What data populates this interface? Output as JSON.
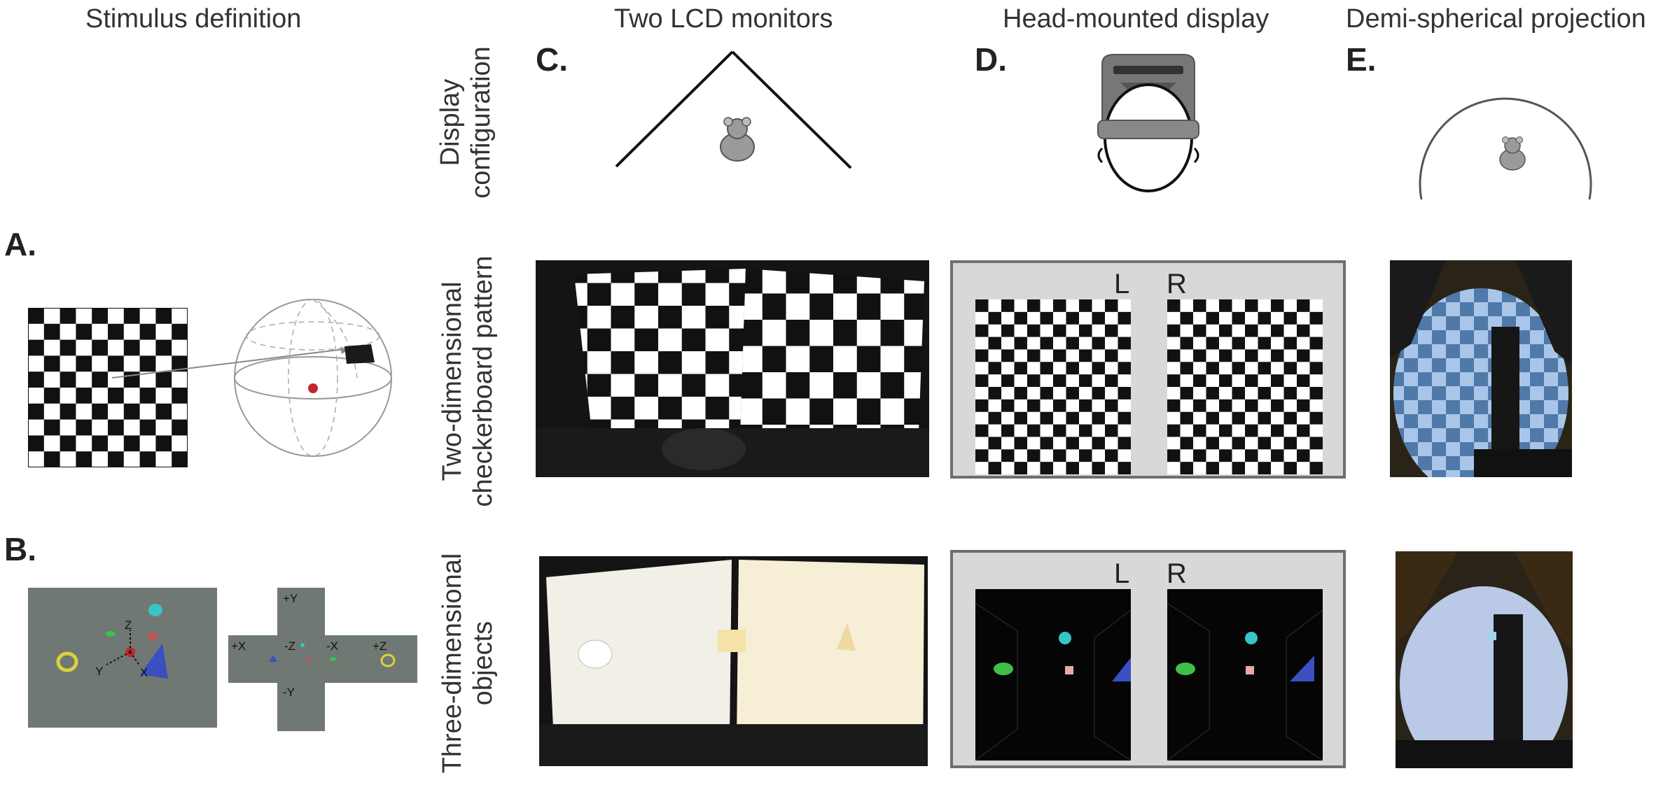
{
  "columns": {
    "stimulus": "Stimulus definition",
    "lcd": "Two LCD monitors",
    "hmd": "Head-mounted display",
    "dome": "Demi-spherical projection"
  },
  "panel_letters": {
    "a": "A.",
    "b": "B.",
    "c": "C.",
    "d": "D.",
    "e": "E."
  },
  "rows": {
    "display": [
      "Display",
      "configuration"
    ],
    "checker": [
      "Two-dimensional",
      "checkerboard pattern"
    ],
    "objects": [
      "Three-dimensional",
      "objects"
    ]
  },
  "eyes": {
    "left": "L",
    "right": "R"
  },
  "scene_axes": {
    "z": "Z",
    "y": "Y",
    "x": "X"
  },
  "cube_map_faces": {
    "pos_y": "+Y",
    "neg_y": "-Y",
    "pos_x": "+X",
    "neg_z": "-Z",
    "neg_x": "-X",
    "pos_z": "+Z"
  },
  "colors": {
    "checker_dark": "#111111",
    "checker_light": "#ffffff",
    "scene_gray": "#707873",
    "hmd_frame": "#6f6f6f",
    "hmd_bg": "#d8d8d8",
    "sphere_dot": "#c0282d",
    "cone_blue": "#3a4fc0",
    "ring_yellow": "#d9d23a",
    "object_cyan": "#39c4c8",
    "object_green": "#3fbf4a"
  }
}
